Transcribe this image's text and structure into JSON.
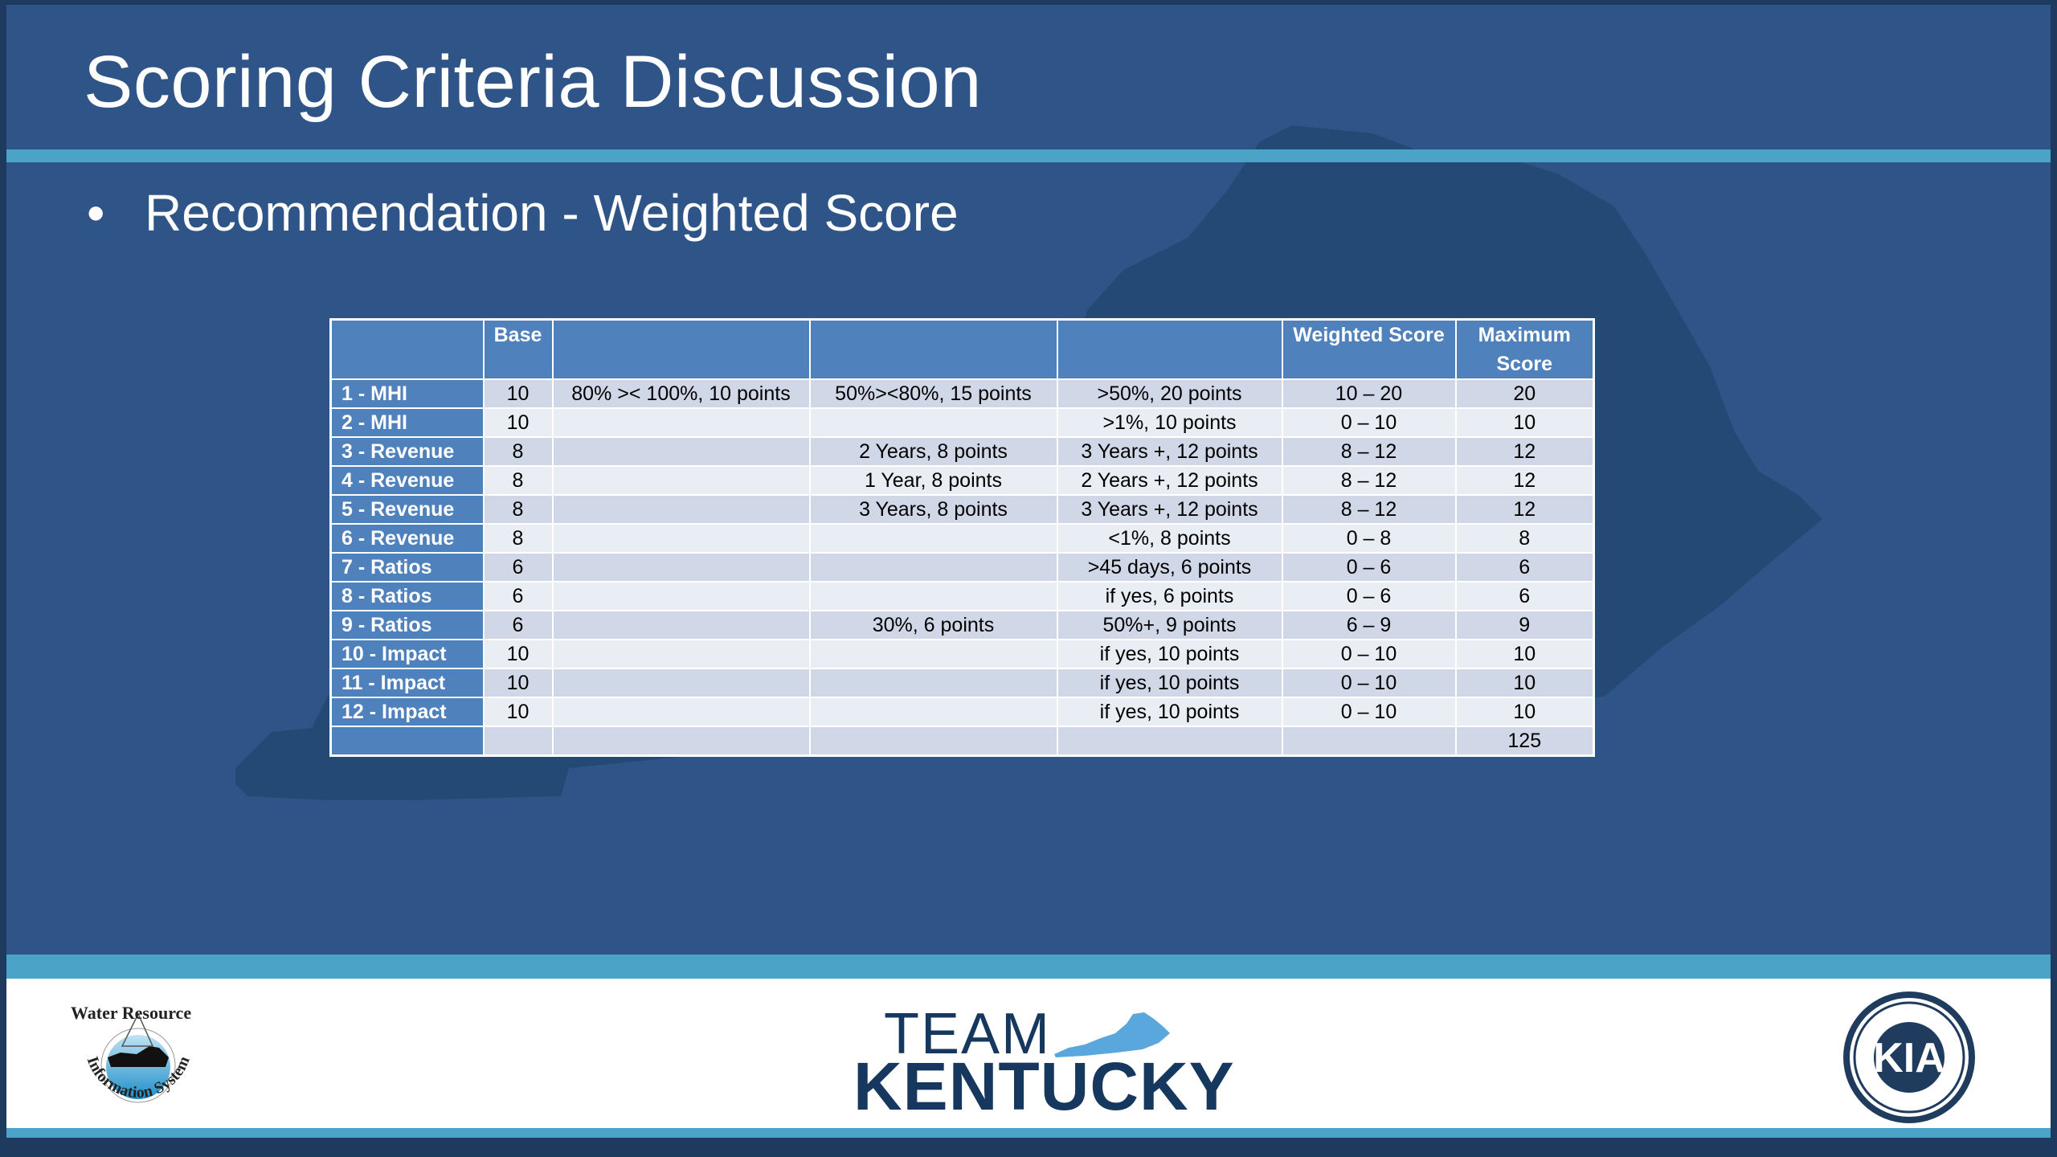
{
  "slide": {
    "title": "Scoring Criteria Discussion",
    "bullet": "Recommendation - Weighted Score"
  },
  "table": {
    "headers": [
      "",
      "Base",
      "",
      "",
      "",
      "Weighted Score",
      "Maximum Score"
    ],
    "rows": [
      {
        "label": "1 - MHI",
        "base": "10",
        "c1": "80% >< 100%, 10 points",
        "c2": "50%><80%, 15 points",
        "c3": ">50%, 20 points",
        "weighted": "10 – 20",
        "max": "20"
      },
      {
        "label": "2 - MHI",
        "base": "10",
        "c1": "",
        "c2": "",
        "c3": ">1%, 10 points",
        "weighted": "0 – 10",
        "max": "10"
      },
      {
        "label": "3 - Revenue",
        "base": "8",
        "c1": "",
        "c2": "2 Years, 8 points",
        "c3": "3 Years +, 12 points",
        "weighted": "8 – 12",
        "max": "12"
      },
      {
        "label": "4 - Revenue",
        "base": "8",
        "c1": "",
        "c2": "1 Year, 8 points",
        "c3": "2 Years +, 12 points",
        "weighted": "8 – 12",
        "max": "12"
      },
      {
        "label": "5 - Revenue",
        "base": "8",
        "c1": "",
        "c2": "3 Years, 8 points",
        "c3": "3 Years +, 12 points",
        "weighted": "8 – 12",
        "max": "12"
      },
      {
        "label": "6 - Revenue",
        "base": "8",
        "c1": "",
        "c2": "",
        "c3": "<1%, 8 points",
        "weighted": "0 – 8",
        "max": "8"
      },
      {
        "label": "7 - Ratios",
        "base": "6",
        "c1": "",
        "c2": "",
        "c3": ">45 days, 6 points",
        "weighted": "0 – 6",
        "max": "6"
      },
      {
        "label": "8 - Ratios",
        "base": "6",
        "c1": "",
        "c2": "",
        "c3": "if yes, 6 points",
        "weighted": "0 – 6",
        "max": "6"
      },
      {
        "label": "9 - Ratios",
        "base": "6",
        "c1": "",
        "c2": "30%, 6 points",
        "c3": "50%+, 9 points",
        "weighted": "6 – 9",
        "max": "9"
      },
      {
        "label": "10 - Impact",
        "base": "10",
        "c1": "",
        "c2": "",
        "c3": "if yes, 10 points",
        "weighted": "0 – 10",
        "max": "10"
      },
      {
        "label": "11 - Impact",
        "base": "10",
        "c1": "",
        "c2": "",
        "c3": "if yes, 10 points",
        "weighted": "0 – 10",
        "max": "10"
      },
      {
        "label": "12 - Impact",
        "base": "10",
        "c1": "",
        "c2": "",
        "c3": "if yes, 10 points",
        "weighted": "0 – 10",
        "max": "10"
      },
      {
        "label": "",
        "base": "",
        "c1": "",
        "c2": "",
        "c3": "",
        "weighted": "",
        "max": "125"
      }
    ]
  },
  "footer": {
    "wris_logo_text": "Water Resource Information System",
    "wris_top": "Water Resource",
    "wris_arc": "Information System",
    "team_word": "TEAM",
    "kentucky_word": "KENTUCKY",
    "kia_letters": "KIA",
    "kia_seal_icon": "kia-seal-icon"
  },
  "colors": {
    "slide_bg": "#2f5588",
    "accent": "#4ba3c7",
    "table_header": "#4f81bd",
    "row_odd": "#d0d8e8",
    "row_even": "#e9edf4",
    "brand_navy": "#16385f",
    "brand_light_blue": "#5aa7dd"
  }
}
